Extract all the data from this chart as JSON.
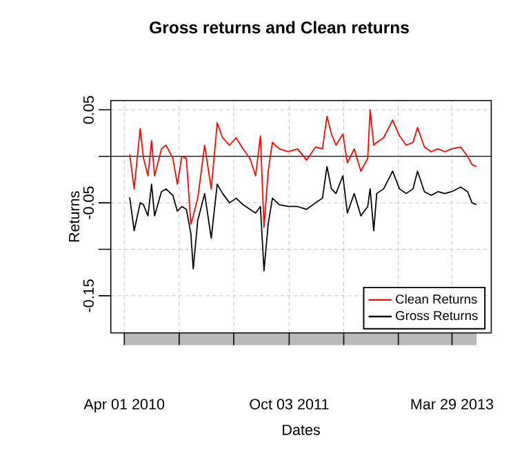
{
  "chart_data": {
    "type": "line",
    "title": "Gross returns and Clean returns",
    "xlabel": "Dates",
    "ylabel": "Returns",
    "x": [
      "2010-04-19",
      "2010-05-04",
      "2010-05-24",
      "2010-06-04",
      "2010-06-19",
      "2010-07-01",
      "2010-07-11",
      "2010-08-03",
      "2010-08-18",
      "2010-09-10",
      "2010-09-25",
      "2010-10-10",
      "2010-10-25",
      "2010-11-09",
      "2010-11-17",
      "2010-12-02",
      "2010-12-25",
      "2011-01-16",
      "2011-02-05",
      "2011-02-23",
      "2011-03-18",
      "2011-04-09",
      "2011-05-02",
      "2011-05-25",
      "2011-06-13",
      "2011-06-29",
      "2011-07-11",
      "2011-07-25",
      "2011-08-08",
      "2011-08-31",
      "2011-09-30",
      "2011-10-31",
      "2011-11-30",
      "2011-12-30",
      "2012-01-22",
      "2012-02-06",
      "2012-02-21",
      "2012-03-07",
      "2012-03-30",
      "2012-04-14",
      "2012-05-07",
      "2012-05-29",
      "2012-06-21",
      "2012-06-29",
      "2012-07-11",
      "2012-07-21",
      "2012-08-13",
      "2012-09-12",
      "2012-10-05",
      "2012-10-27",
      "2012-11-19",
      "2012-12-04",
      "2012-12-27",
      "2013-01-19",
      "2013-02-10",
      "2013-03-05",
      "2013-03-28",
      "2013-04-27",
      "2013-05-20",
      "2013-06-04",
      "2013-06-19"
    ],
    "series": [
      {
        "name": "Clean Returns",
        "color": "#ff0000",
        "values": [
          0.002,
          -0.035,
          0.03,
          -0.002,
          -0.021,
          0.017,
          -0.021,
          0.008,
          0.012,
          -0.002,
          -0.03,
          0.0,
          -0.002,
          -0.073,
          -0.064,
          -0.045,
          0.012,
          -0.035,
          0.036,
          0.02,
          0.012,
          0.02,
          0.008,
          -0.002,
          -0.021,
          0.022,
          -0.076,
          -0.016,
          0.015,
          0.008,
          0.005,
          0.008,
          -0.004,
          0.01,
          0.008,
          0.043,
          0.024,
          0.012,
          0.024,
          -0.007,
          0.008,
          -0.016,
          -0.002,
          0.05,
          0.012,
          0.015,
          0.02,
          0.039,
          0.022,
          0.012,
          0.015,
          0.031,
          0.01,
          0.005,
          0.008,
          0.005,
          0.008,
          0.01,
          0.0,
          -0.009,
          -0.011
        ]
      },
      {
        "name": "Gross Returns",
        "color": "#000000",
        "values": [
          -0.044,
          -0.08,
          -0.05,
          -0.052,
          -0.064,
          -0.03,
          -0.064,
          -0.038,
          -0.035,
          -0.042,
          -0.059,
          -0.054,
          -0.057,
          -0.083,
          -0.121,
          -0.069,
          -0.04,
          -0.088,
          -0.03,
          -0.04,
          -0.05,
          -0.045,
          -0.052,
          -0.057,
          -0.061,
          -0.054,
          -0.123,
          -0.073,
          -0.045,
          -0.052,
          -0.054,
          -0.054,
          -0.057,
          -0.05,
          -0.045,
          -0.011,
          -0.035,
          -0.04,
          -0.021,
          -0.061,
          -0.04,
          -0.064,
          -0.054,
          -0.035,
          -0.08,
          -0.04,
          -0.035,
          -0.016,
          -0.035,
          -0.04,
          -0.035,
          -0.016,
          -0.038,
          -0.042,
          -0.038,
          -0.04,
          -0.038,
          -0.033,
          -0.038,
          -0.05,
          -0.052
        ]
      }
    ],
    "xlim": [
      "2010-02-15",
      "2013-08-07"
    ],
    "xticks": [
      {
        "value": "2010-04-01",
        "label": "Apr 01 2010"
      },
      {
        "value": "2010-10-01",
        "label": null
      },
      {
        "value": "2011-04-01",
        "label": null
      },
      {
        "value": "2011-10-03",
        "label": "Oct 03 2011"
      },
      {
        "value": "2012-04-02",
        "label": null
      },
      {
        "value": "2012-10-01",
        "label": null
      },
      {
        "value": "2013-03-29",
        "label": "Mar 29 2013"
      }
    ],
    "ylim": [
      -0.19,
      0.06
    ],
    "yticks": [
      0.05,
      {
        "value": 0,
        "label": null
      },
      -0.05,
      {
        "value": -0.1,
        "label": null
      },
      -0.15
    ],
    "ref_lines": [
      {
        "axis": "y",
        "value": 0,
        "color": "#000000"
      }
    ],
    "grid": true,
    "legend": "bottom right",
    "line_style": "solid",
    "marker": "none"
  }
}
